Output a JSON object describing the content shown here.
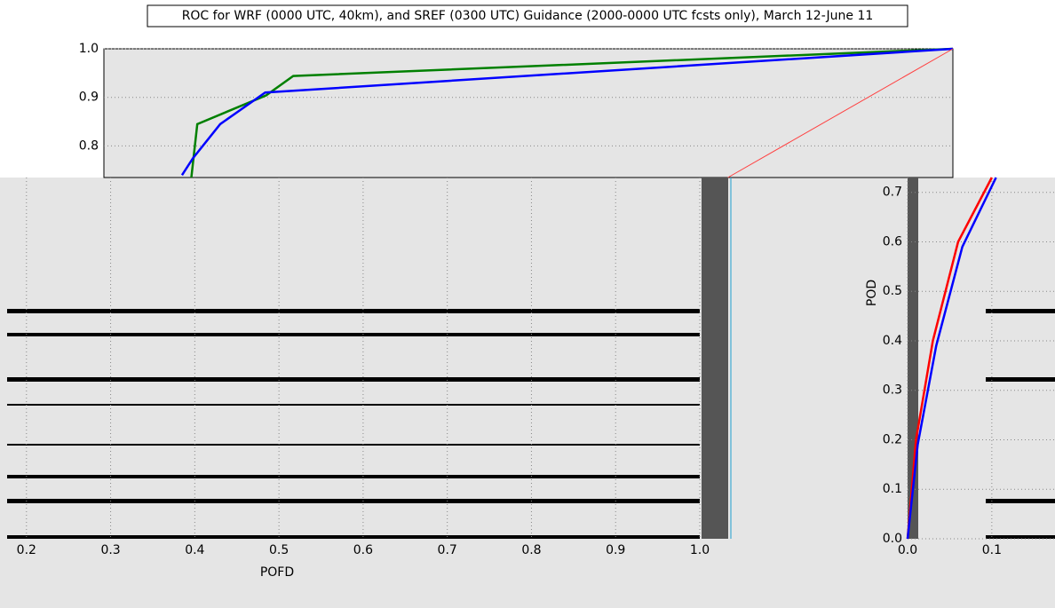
{
  "chart_data": [
    {
      "type": "line",
      "title": "ROC for WRF (0000 UTC, 40km), and SREF (0300 UTC) Guidance (2000-0000 UTC fcsts only), March 12-June 11",
      "xlim": [
        0,
        1
      ],
      "ylim": [
        0.735,
        1.0
      ],
      "yticks": [
        0.8,
        0.9,
        {
          "value": 1,
          "label": "1.0"
        }
      ],
      "grid": true,
      "series": [
        {
          "color": "#008000",
          "x": [
            0.103,
            0.11,
            0.191,
            0.223,
            1
          ],
          "values": [
            0.735,
            0.845,
            0.904,
            0.944,
            1
          ]
        },
        {
          "color": "#0000ff",
          "x": [
            0.092,
            0.105,
            0.137,
            0.19,
            1
          ],
          "values": [
            0.74,
            0.775,
            0.845,
            0.91,
            1
          ]
        },
        {
          "color": "#ff4040",
          "x": [
            0.735,
            1
          ],
          "values": [
            0.735,
            1
          ]
        }
      ]
    },
    {
      "type": "line",
      "xlabel": "POFD",
      "xlim": [
        0.177,
        1.0
      ],
      "xticks": [
        0.2,
        0.3,
        0.4,
        0.5,
        0.6,
        0.7,
        0.8,
        0.9,
        {
          "value": 1,
          "label": "1.0"
        }
      ],
      "grid": true
    },
    {
      "type": "line",
      "ylabel": "POD",
      "xlim": [
        0,
        0.175
      ],
      "ylim": [
        0,
        0.73
      ],
      "xticks": [
        {
          "value": 0,
          "label": "0.0"
        },
        0.1
      ],
      "yticks": [
        {
          "value": 0,
          "label": "0.0"
        },
        0.1,
        0.2,
        0.3,
        0.4,
        0.5,
        0.6,
        0.7
      ],
      "grid": true,
      "series": [
        {
          "color": "#ff0000",
          "x": [
            0,
            0.01,
            0.03,
            0.06,
            0.1
          ],
          "values": [
            0,
            0.2,
            0.4,
            0.6,
            0.73
          ]
        },
        {
          "color": "#0000ff",
          "x": [
            0,
            0.012,
            0.034,
            0.065,
            0.105
          ],
          "values": [
            0,
            0.19,
            0.39,
            0.59,
            0.73
          ]
        }
      ]
    }
  ]
}
